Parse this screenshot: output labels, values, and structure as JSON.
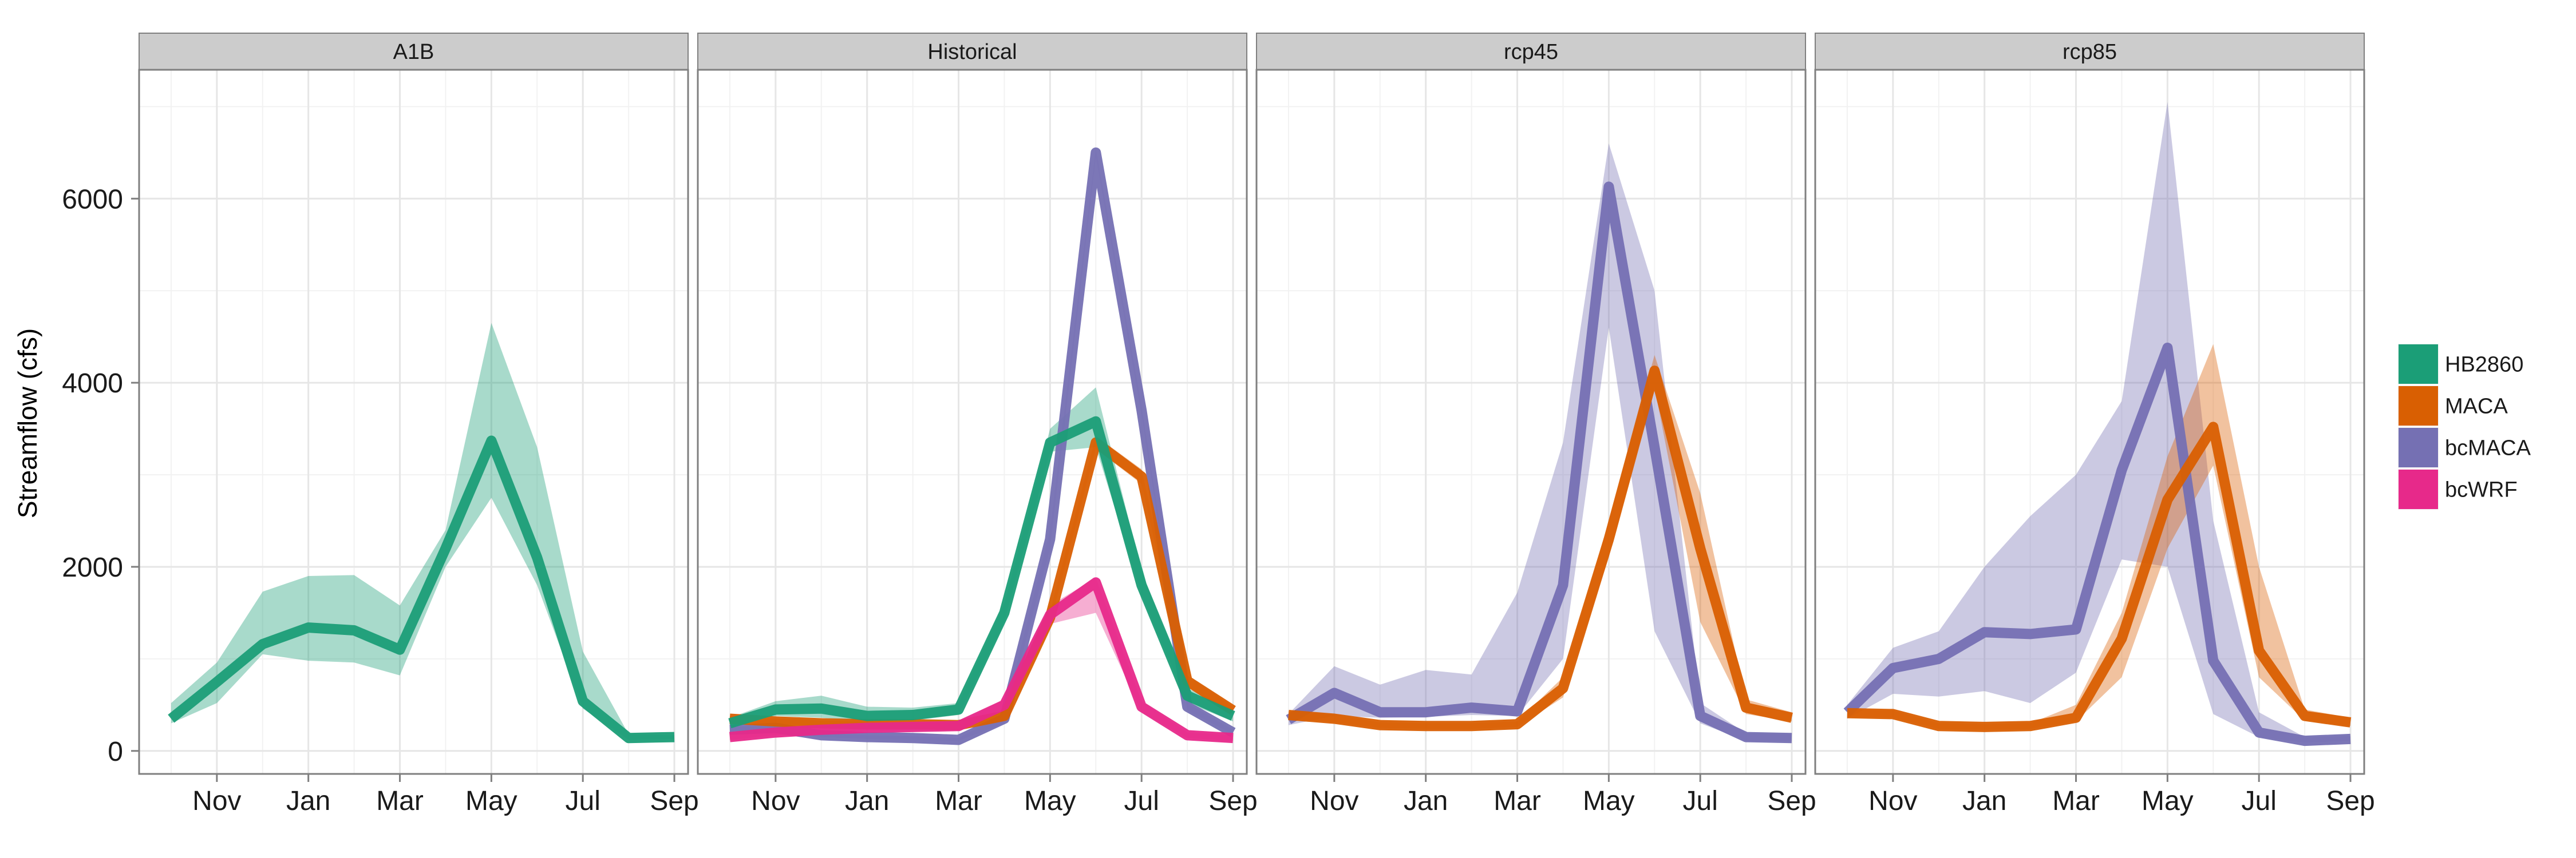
{
  "chart_data": {
    "type": "line",
    "facet_titles": [
      "A1B",
      "Historical",
      "rcp45",
      "rcp85"
    ],
    "ylabel": "Streamflow (cfs)",
    "xlabel": "",
    "ylim": [
      -250,
      7400
    ],
    "yticks": [
      0,
      2000,
      4000,
      6000
    ],
    "xlim": [
      0.3,
      12.3
    ],
    "xticks": [
      {
        "label": "Nov",
        "x": 2
      },
      {
        "label": "Jan",
        "x": 4
      },
      {
        "label": "Mar",
        "x": 6
      },
      {
        "label": "May",
        "x": 8
      },
      {
        "label": "Jul",
        "x": 10
      },
      {
        "label": "Sep",
        "x": 12
      }
    ],
    "x_months": [
      1,
      2,
      3,
      4,
      5,
      6,
      7,
      8,
      9,
      10,
      11,
      12
    ],
    "grid": true,
    "legend_position": "right",
    "legend": [
      {
        "name": "HB2860",
        "color": "#1b9e77"
      },
      {
        "name": "MACA",
        "color": "#d95f02"
      },
      {
        "name": "bcMACA",
        "color": "#7570b3"
      },
      {
        "name": "bcWRF",
        "color": "#e7298a"
      }
    ],
    "panels": [
      {
        "title": "A1B",
        "series": [
          {
            "name": "HB2860",
            "mean": [
              350,
              750,
              1160,
              1340,
              1310,
              1100,
              2200,
              3370,
              2100,
              540,
              140,
              150
            ],
            "lower": [
              300,
              520,
              1050,
              980,
              960,
              820,
              2000,
              2750,
              1800,
              460,
              120,
              130
            ],
            "upper": [
              520,
              960,
              1730,
              1900,
              1910,
              1580,
              2400,
              4650,
              3300,
              1080,
              180,
              170
            ]
          }
        ]
      },
      {
        "title": "Historical",
        "series": [
          {
            "name": "bcMACA",
            "mean": [
              230,
              250,
              170,
              150,
              140,
              120,
              350,
              2300,
              6500,
              3700,
              480,
              200
            ],
            "lower": [
              200,
              220,
              150,
              130,
              120,
              110,
              300,
              2200,
              6450,
              3650,
              440,
              180
            ],
            "upper": [
              260,
              280,
              190,
              170,
              160,
              140,
              400,
              2400,
              6550,
              3750,
              520,
              230
            ]
          },
          {
            "name": "MACA",
            "mean": [
              350,
              320,
              300,
              290,
              290,
              280,
              380,
              1450,
              3350,
              2980,
              760,
              440
            ],
            "lower": [
              320,
              290,
              270,
              260,
              260,
              250,
              340,
              1380,
              3280,
              2900,
              700,
              400
            ],
            "upper": [
              380,
              350,
              330,
              320,
              320,
              310,
              420,
              1520,
              3420,
              3060,
              820,
              480
            ]
          },
          {
            "name": "bcWRF",
            "mean": [
              150,
              200,
              230,
              250,
              260,
              270,
              500,
              1480,
              1830,
              480,
              170,
              140
            ],
            "lower": [
              120,
              170,
              200,
              220,
              230,
              240,
              440,
              1380,
              1500,
              420,
              140,
              110
            ],
            "upper": [
              180,
              230,
              260,
              280,
              290,
              300,
              560,
              1580,
              1880,
              540,
              200,
              170
            ]
          },
          {
            "name": "HB2860",
            "mean": [
              300,
              450,
              460,
              380,
              390,
              450,
              1500,
              3350,
              3580,
              1800,
              600,
              380
            ],
            "lower": [
              260,
              380,
              360,
              320,
              330,
              390,
              1400,
              3250,
              3300,
              1700,
              520,
              320
            ],
            "upper": [
              360,
              540,
              600,
              480,
              470,
              520,
              1600,
              3500,
              3950,
              1950,
              680,
              450
            ]
          }
        ]
      },
      {
        "title": "rcp45",
        "series": [
          {
            "name": "bcMACA",
            "mean": [
              340,
              630,
              420,
              420,
              470,
              430,
              1800,
              6130,
              3300,
              380,
              150,
              140
            ],
            "lower": [
              280,
              380,
              360,
              370,
              390,
              380,
              1000,
              4600,
              1300,
              300,
              110,
              110
            ],
            "upper": [
              400,
              920,
              720,
              880,
              830,
              1720,
              3350,
              6600,
              5000,
              520,
              190,
              180
            ]
          },
          {
            "name": "MACA",
            "mean": [
              390,
              350,
              280,
              270,
              270,
              290,
              680,
              2300,
              4130,
              2200,
              470,
              360
            ],
            "lower": [
              350,
              310,
              250,
              240,
              240,
              260,
              580,
              2100,
              3950,
              1400,
              400,
              320
            ],
            "upper": [
              430,
              390,
              310,
              300,
              300,
              320,
              800,
              2500,
              4300,
              2800,
              560,
              420
            ]
          }
        ]
      },
      {
        "title": "rcp85",
        "series": [
          {
            "name": "bcMACA",
            "mean": [
              420,
              900,
              1000,
              1290,
              1270,
              1320,
              3050,
              4380,
              980,
              200,
              110,
              130
            ],
            "lower": [
              350,
              620,
              590,
              650,
              520,
              850,
              2080,
              2000,
              400,
              150,
              90,
              110
            ],
            "upper": [
              500,
              1120,
              1300,
              2000,
              2550,
              3000,
              3800,
              7050,
              2500,
              420,
              150,
              160
            ]
          },
          {
            "name": "MACA",
            "mean": [
              410,
              400,
              270,
              260,
              270,
              360,
              1220,
              2730,
              3520,
              1090,
              380,
              310
            ],
            "lower": [
              370,
              360,
              240,
              230,
              240,
              320,
              800,
              2200,
              3100,
              800,
              330,
              270
            ],
            "upper": [
              450,
              440,
              300,
              290,
              300,
              500,
              1500,
              3200,
              4420,
              2000,
              450,
              360
            ]
          }
        ]
      }
    ]
  }
}
